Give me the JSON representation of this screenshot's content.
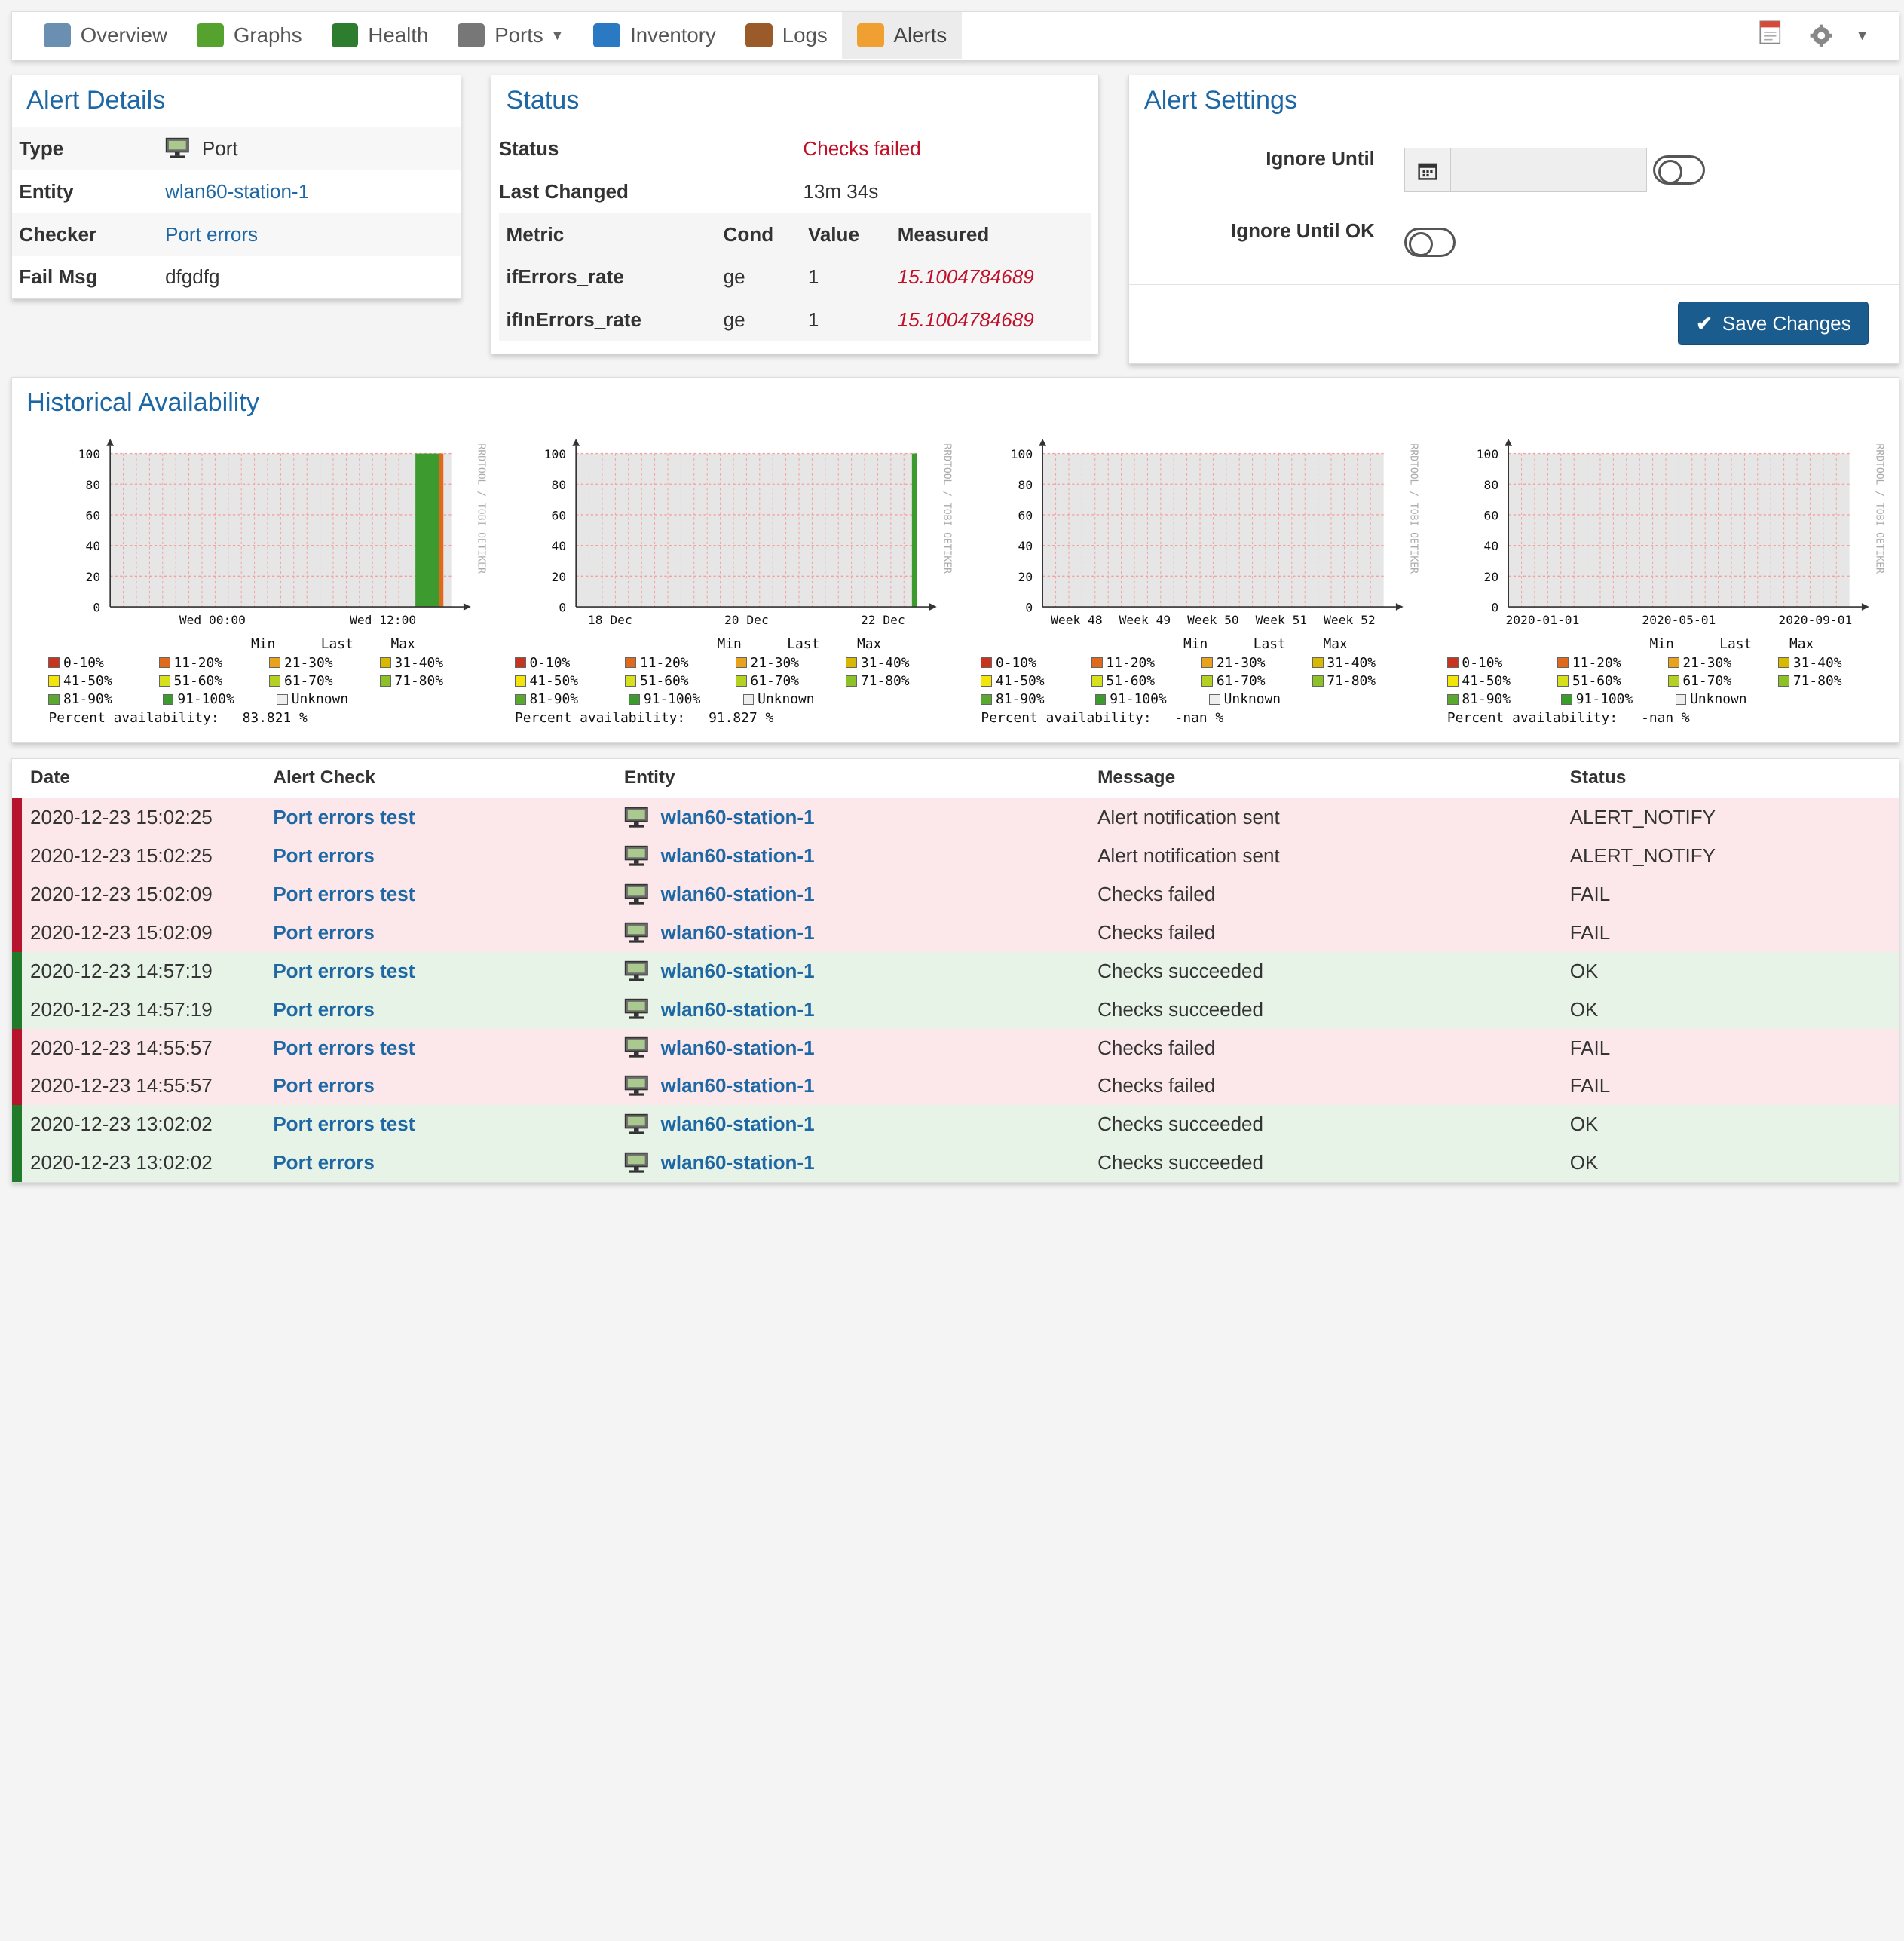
{
  "nav": {
    "items": [
      {
        "label": "Overview",
        "icon": "overview-icon",
        "color": "#6a8fb0"
      },
      {
        "label": "Graphs",
        "icon": "graphs-icon",
        "color": "#55a32e"
      },
      {
        "label": "Health",
        "icon": "health-icon",
        "color": "#2e7d2e"
      },
      {
        "label": "Ports",
        "icon": "ports-icon",
        "color": "#777777",
        "dropdown": true
      },
      {
        "label": "Inventory",
        "icon": "inventory-icon",
        "color": "#2b79c2"
      },
      {
        "label": "Logs",
        "icon": "logs-icon",
        "color": "#9a5a2a"
      },
      {
        "label": "Alerts",
        "icon": "alerts-icon",
        "color": "#f0a030",
        "active": true
      }
    ]
  },
  "alert_details": {
    "title": "Alert Details",
    "type_label": "Type",
    "type_value": "Port",
    "entity_label": "Entity",
    "entity_value": "wlan60-station-1",
    "checker_label": "Checker",
    "checker_value": "Port errors",
    "failmsg_label": "Fail Msg",
    "failmsg_value": "dfgdfg"
  },
  "status": {
    "title": "Status",
    "status_label": "Status",
    "status_value": "Checks failed",
    "changed_label": "Last Changed",
    "changed_value": "13m 34s",
    "cols": [
      "Metric",
      "Cond",
      "Value",
      "Measured"
    ],
    "metrics": [
      {
        "metric": "ifErrors_rate",
        "cond": "ge",
        "value": "1",
        "measured": "15.1004784689"
      },
      {
        "metric": "ifInErrors_rate",
        "cond": "ge",
        "value": "1",
        "measured": "15.1004784689"
      }
    ]
  },
  "settings": {
    "title": "Alert Settings",
    "ignore_until_label": "Ignore Until",
    "ignore_until_value": "",
    "ignore_ok_label": "Ignore Until OK",
    "save_label": "Save Changes"
  },
  "history": {
    "title": "Historical Availability",
    "watermark": "RRDTOOL / TOBI OETIKER",
    "legend": {
      "ranges": [
        "0-10%",
        "11-20%",
        "21-30%",
        "31-40%",
        "41-50%",
        "51-60%",
        "61-70%",
        "71-80%",
        "81-90%",
        "91-100%",
        "Unknown"
      ],
      "colors": [
        "#c8341e",
        "#e06a1c",
        "#e8a21c",
        "#d8b800",
        "#f3e40a",
        "#d6e01c",
        "#b4d020",
        "#8cc228",
        "#5aa830",
        "#3c9a2e",
        "#eeeeee"
      ],
      "min": "Min",
      "last": "Last",
      "max": "Max",
      "pct_label": "Percent availability:"
    },
    "charts": [
      {
        "y_ticks": [
          "100",
          "80",
          "60",
          "40",
          "20",
          "0"
        ],
        "x_ticks": [
          "Wed 00:00",
          "Wed 12:00"
        ],
        "pct": "83.821 %"
      },
      {
        "y_ticks": [
          "100",
          "80",
          "60",
          "40",
          "20",
          "0"
        ],
        "x_ticks": [
          "18 Dec",
          "20 Dec",
          "22 Dec"
        ],
        "pct": "91.827 %"
      },
      {
        "y_ticks": [
          "100",
          "80",
          "60",
          "40",
          "20",
          "0"
        ],
        "x_ticks": [
          "Week 48",
          "Week 49",
          "Week 50",
          "Week 51",
          "Week 52"
        ],
        "pct": "-nan %"
      },
      {
        "y_ticks": [
          "100",
          "80",
          "60",
          "40",
          "20",
          "0"
        ],
        "x_ticks": [
          "2020-01-01",
          "2020-05-01",
          "2020-09-01"
        ],
        "pct": "-nan %"
      }
    ]
  },
  "log": {
    "headers": [
      "Date",
      "Alert Check",
      "Entity",
      "Message",
      "Status"
    ],
    "rows": [
      {
        "date": "2020-12-23 15:02:25",
        "check": "Port errors test",
        "entity": "wlan60-station-1",
        "message": "Alert notification sent",
        "status": "ALERT_NOTIFY",
        "kind": "fail"
      },
      {
        "date": "2020-12-23 15:02:25",
        "check": "Port errors",
        "entity": "wlan60-station-1",
        "message": "Alert notification sent",
        "status": "ALERT_NOTIFY",
        "kind": "fail"
      },
      {
        "date": "2020-12-23 15:02:09",
        "check": "Port errors test",
        "entity": "wlan60-station-1",
        "message": "Checks failed",
        "status": "FAIL",
        "kind": "fail"
      },
      {
        "date": "2020-12-23 15:02:09",
        "check": "Port errors",
        "entity": "wlan60-station-1",
        "message": "Checks failed",
        "status": "FAIL",
        "kind": "fail"
      },
      {
        "date": "2020-12-23 14:57:19",
        "check": "Port errors test",
        "entity": "wlan60-station-1",
        "message": "Checks succeeded",
        "status": "OK",
        "kind": "ok"
      },
      {
        "date": "2020-12-23 14:57:19",
        "check": "Port errors",
        "entity": "wlan60-station-1",
        "message": "Checks succeeded",
        "status": "OK",
        "kind": "ok"
      },
      {
        "date": "2020-12-23 14:55:57",
        "check": "Port errors test",
        "entity": "wlan60-station-1",
        "message": "Checks failed",
        "status": "FAIL",
        "kind": "fail"
      },
      {
        "date": "2020-12-23 14:55:57",
        "check": "Port errors",
        "entity": "wlan60-station-1",
        "message": "Checks failed",
        "status": "FAIL",
        "kind": "fail"
      },
      {
        "date": "2020-12-23 13:02:02",
        "check": "Port errors test",
        "entity": "wlan60-station-1",
        "message": "Checks succeeded",
        "status": "OK",
        "kind": "ok"
      },
      {
        "date": "2020-12-23 13:02:02",
        "check": "Port errors",
        "entity": "wlan60-station-1",
        "message": "Checks succeeded",
        "status": "OK",
        "kind": "ok"
      }
    ]
  }
}
